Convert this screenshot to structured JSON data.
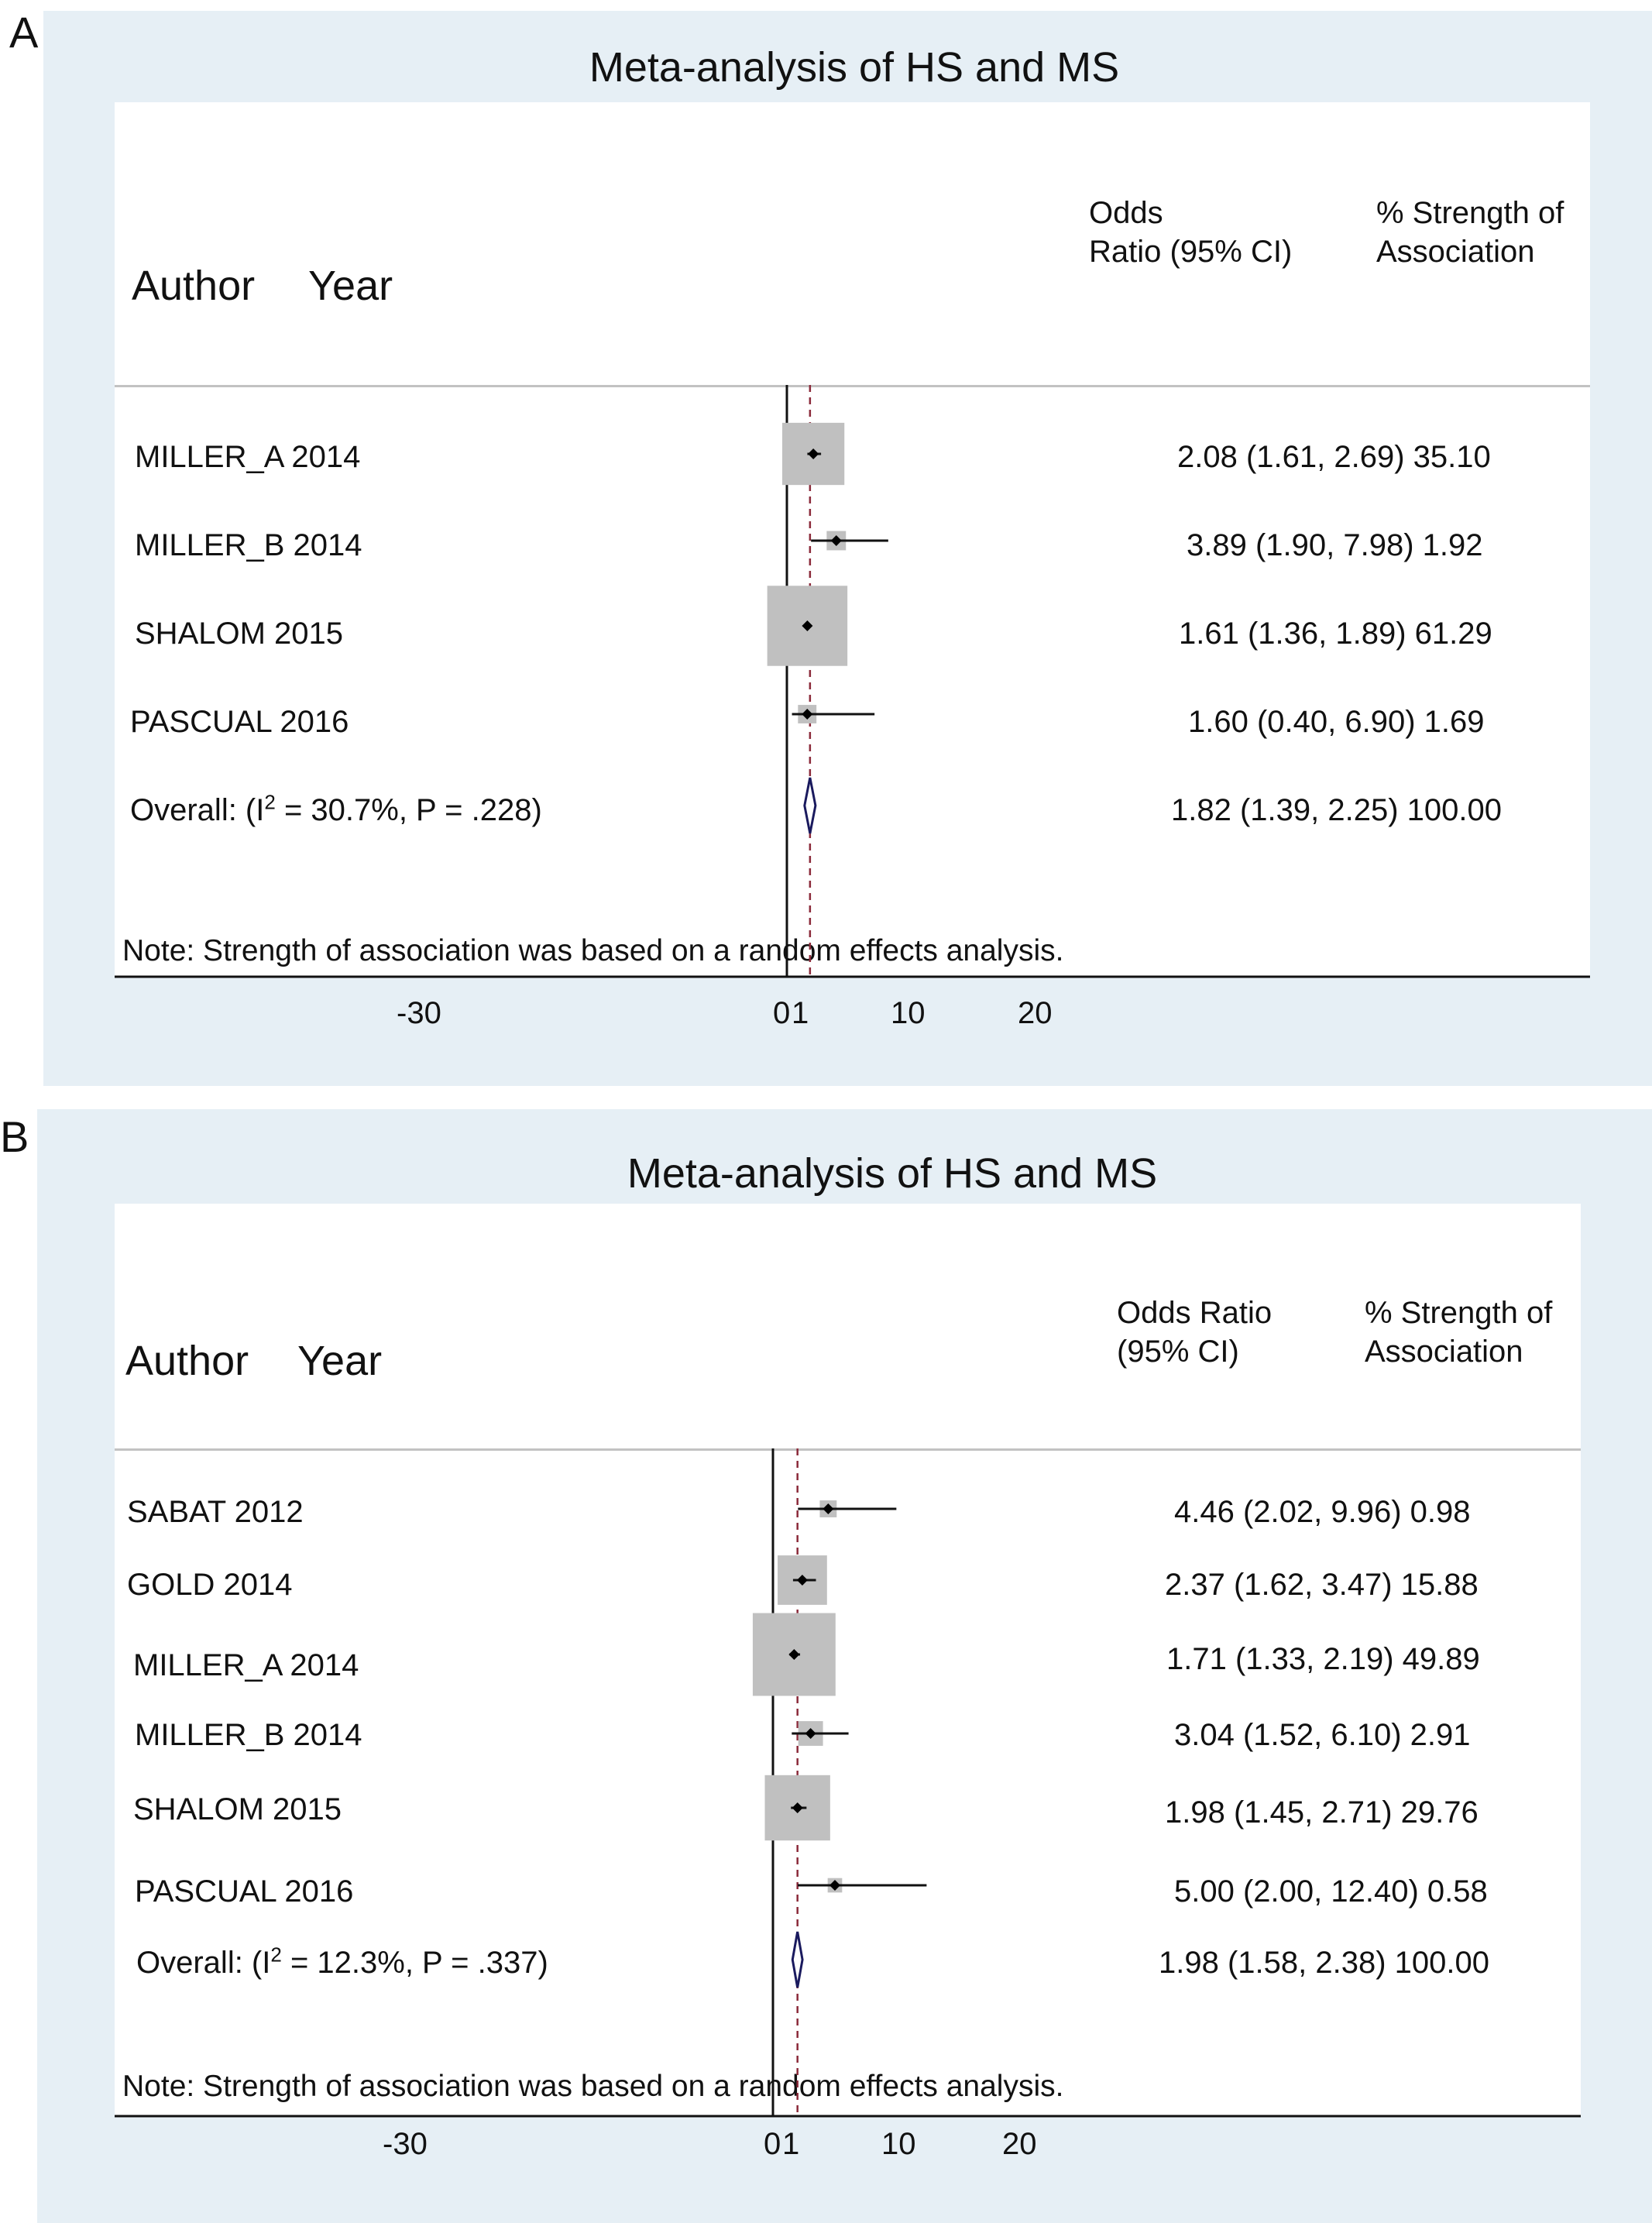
{
  "chart_data": [
    {
      "type": "forest",
      "panel": "A",
      "title": "Meta-analysis of HS and MS",
      "columns": {
        "author": "Author",
        "year": "Year",
        "or_line1": "Odds",
        "or_line2": "Ratio (95% CI)",
        "weight_line1": "% Strength of",
        "weight_line2": "Association"
      },
      "studies": [
        {
          "label": "MILLER_A 2014",
          "or": 2.08,
          "ci": [
            1.61,
            2.69
          ],
          "weight": 35.1,
          "text": "2.08 (1.61, 2.69) 35.10"
        },
        {
          "label": "MILLER_B 2014",
          "or": 3.89,
          "ci": [
            1.9,
            7.98
          ],
          "weight": 1.92,
          "text": "3.89 (1.90, 7.98) 1.92"
        },
        {
          "label": "SHALOM 2015",
          "or": 1.61,
          "ci": [
            1.36,
            1.89
          ],
          "weight": 61.29,
          "text": "1.61 (1.36, 1.89) 61.29"
        },
        {
          "label": "PASCUAL 2016",
          "or": 1.6,
          "ci": [
            0.4,
            6.9
          ],
          "weight": 1.69,
          "text": "1.60 (0.40, 6.90) 1.69"
        }
      ],
      "overall": {
        "label_pre": "Overall: (I",
        "label_sup": "2",
        "label_post": " = 30.7%, P = .228)",
        "or": 1.82,
        "ci": [
          1.39,
          2.25
        ],
        "weight": 100.0,
        "text": "1.82 (1.39, 2.25) 100.00"
      },
      "note": "Note: Strength of association was based on a random effects analysis.",
      "x_ticks": [
        {
          "value": -30,
          "label": "-30"
        },
        {
          "value": 0,
          "label": "0"
        },
        {
          "value": 1,
          "label": "1"
        },
        {
          "value": 10,
          "label": "10"
        },
        {
          "value": 20,
          "label": "20"
        }
      ],
      "null_line": 0
    },
    {
      "type": "forest",
      "panel": "B",
      "title": "Meta-analysis of HS and MS",
      "columns": {
        "author": "Author",
        "year": "Year",
        "or_line1": "Odds Ratio",
        "or_line2": "(95% CI)",
        "weight_line1": "% Strength of",
        "weight_line2": "Association"
      },
      "studies": [
        {
          "label": "SABAT 2012",
          "or": 4.46,
          "ci": [
            2.02,
            9.96
          ],
          "weight": 0.98,
          "text": "4.46 (2.02, 9.96) 0.98"
        },
        {
          "label": "GOLD 2014",
          "or": 2.37,
          "ci": [
            1.62,
            3.47
          ],
          "weight": 15.88,
          "text": "2.37 (1.62, 3.47) 15.88"
        },
        {
          "label": "MILLER_A 2014",
          "or": 1.71,
          "ci": [
            1.33,
            2.19
          ],
          "weight": 49.89,
          "text": "1.71 (1.33, 2.19) 49.89"
        },
        {
          "label": "MILLER_B 2014",
          "or": 3.04,
          "ci": [
            1.52,
            6.1
          ],
          "weight": 2.91,
          "text": "3.04 (1.52, 6.10) 2.91"
        },
        {
          "label": "SHALOM 2015",
          "or": 1.98,
          "ci": [
            1.45,
            2.71
          ],
          "weight": 29.76,
          "text": "1.98 (1.45, 2.71) 29.76"
        },
        {
          "label": "PASCUAL 2016",
          "or": 5.0,
          "ci": [
            2.0,
            12.4
          ],
          "weight": 0.58,
          "text": "5.00 (2.00, 12.40) 0.58"
        }
      ],
      "overall": {
        "label_pre": "Overall: (I",
        "label_sup": "2",
        "label_post": " = 12.3%, P = .337)",
        "or": 1.98,
        "ci": [
          1.58,
          2.38
        ],
        "weight": 100.0,
        "text": "1.98 (1.58, 2.38) 100.00"
      },
      "note": "Note: Strength of association was based on a random effects analysis.",
      "x_ticks": [
        {
          "value": -30,
          "label": "-30"
        },
        {
          "value": 0,
          "label": "0"
        },
        {
          "value": 1,
          "label": "1"
        },
        {
          "value": 10,
          "label": "10"
        },
        {
          "value": 20,
          "label": "20"
        }
      ],
      "null_line": 0
    }
  ],
  "colors": {
    "panel_background": "#e6eff5",
    "weight_box": "#c0c0c0",
    "overall_diamond": "#1a1a5e",
    "pooled_line": "#8b2a3a",
    "separator": "#c2c2c2"
  }
}
